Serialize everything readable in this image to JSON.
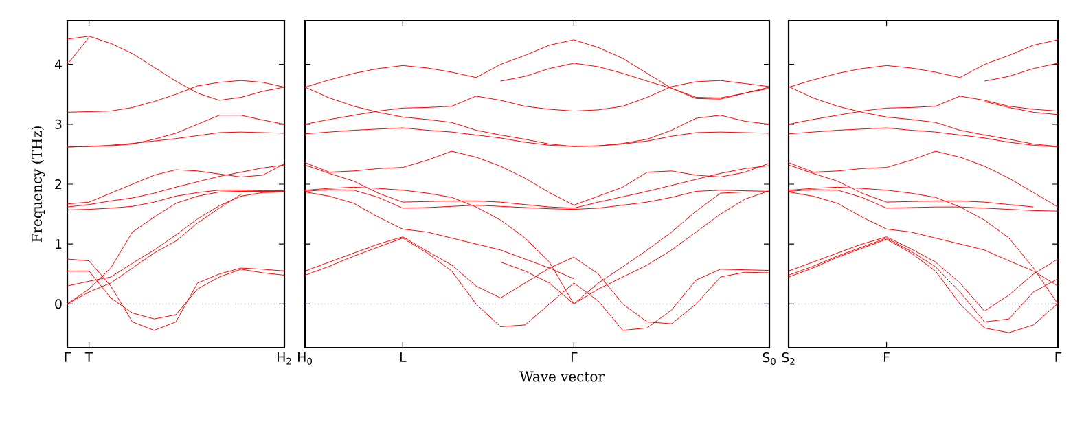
{
  "chart_data": [
    {
      "type": "line",
      "ylabel": "Frequency (THz)",
      "ylim": [
        -0.73,
        4.73
      ],
      "yticks": [
        0,
        1,
        2,
        3,
        4
      ],
      "categories": [
        "Γ",
        "T",
        null,
        null,
        null,
        null,
        null,
        null,
        null,
        null,
        "H$_{2}$"
      ],
      "ref_lines": [
        {
          "axis": "y",
          "value": 0,
          "color": "#6060ff",
          "line_style": "dotted"
        }
      ],
      "series": [
        {
          "color": "#ff0000",
          "values": [
            4.42,
            4.47,
            4.35,
            4.18,
            3.95,
            3.72,
            3.52,
            3.4,
            3.45,
            3.55,
            3.62
          ]
        },
        {
          "color": "#ff0000",
          "values": [
            3.2,
            3.21,
            3.22,
            3.28,
            3.38,
            3.5,
            3.64,
            3.7,
            3.73,
            3.7,
            3.62
          ]
        },
        {
          "color": "#ff0000",
          "values": [
            2.62,
            2.63,
            2.64,
            2.67,
            2.75,
            2.85,
            3.0,
            3.15,
            3.15,
            3.07,
            3.0
          ]
        },
        {
          "color": "#ff0000",
          "values": [
            2.62,
            2.63,
            2.65,
            2.68,
            2.72,
            2.76,
            2.81,
            2.86,
            2.87,
            2.86,
            2.85
          ]
        },
        {
          "color": "#ff0000",
          "values": [
            1.67,
            1.7,
            1.85,
            2.0,
            2.15,
            2.24,
            2.22,
            2.17,
            2.12,
            2.15,
            2.34
          ]
        },
        {
          "color": "#ff0000",
          "values": [
            1.62,
            1.66,
            1.72,
            1.77,
            1.85,
            1.95,
            2.04,
            2.13,
            2.2,
            2.27,
            2.32
          ]
        },
        {
          "color": "#ff0000",
          "values": [
            1.57,
            1.58,
            1.6,
            1.63,
            1.7,
            1.8,
            1.86,
            1.9,
            1.9,
            1.89,
            1.89
          ]
        },
        {
          "color": "#ff0000",
          "values": [
            0.0,
            0.25,
            0.6,
            1.2,
            1.45,
            1.68,
            1.8,
            1.87,
            1.88,
            1.88,
            1.88
          ]
        },
        {
          "color": "#ff0000",
          "values": [
            0.3,
            0.38,
            0.45,
            0.68,
            0.9,
            1.15,
            1.42,
            1.64,
            1.8,
            1.86,
            1.87
          ]
        },
        {
          "color": "#ff0000",
          "values": [
            0.75,
            0.72,
            0.3,
            -0.3,
            -0.44,
            -0.3,
            0.35,
            0.5,
            0.6,
            0.58,
            0.55
          ]
        },
        {
          "color": "#ff0000",
          "values": [
            0.55,
            0.55,
            0.1,
            -0.15,
            -0.25,
            -0.18,
            0.25,
            0.45,
            0.58,
            0.52,
            0.48
          ]
        },
        {
          "color": "#ff0000",
          "values": [
            4.0,
            4.45,
            null,
            null,
            null,
            null,
            null,
            null,
            null,
            null,
            null
          ]
        },
        {
          "color": "#ff0000",
          "values": [
            0.0,
            0.2,
            0.35,
            0.6,
            0.85,
            1.05,
            1.35,
            1.6,
            1.83,
            null,
            null
          ]
        }
      ]
    },
    {
      "type": "line",
      "xlabel": "Wave vector",
      "ylim": [
        -0.73,
        4.73
      ],
      "yticks": [
        0,
        1,
        2,
        3,
        4
      ],
      "tick_labels": "x",
      "categories": [
        "H$_{0}$",
        null,
        null,
        null,
        "L",
        null,
        null,
        null,
        null,
        null,
        null,
        "Γ",
        null,
        null,
        null,
        null,
        null,
        null,
        null,
        "S$_{0}$"
      ],
      "ref_lines": [
        {
          "axis": "y",
          "value": 0,
          "color": "#6060ff",
          "line_style": "dotted"
        }
      ],
      "series": [
        {
          "color": "#ff0000",
          "values": [
            3.62,
            3.74,
            3.85,
            3.93,
            3.98,
            3.94,
            3.87,
            3.78,
            4.0,
            4.15,
            4.32,
            4.41,
            4.28,
            4.1,
            3.85,
            3.6,
            3.43,
            3.42,
            3.52,
            3.62
          ]
        },
        {
          "color": "#ff0000",
          "values": [
            null,
            null,
            null,
            null,
            null,
            null,
            null,
            null,
            3.72,
            3.8,
            3.93,
            4.02,
            3.96,
            3.85,
            3.72,
            3.6,
            3.45,
            3.44,
            3.52,
            3.6
          ]
        },
        {
          "color": "#ff0000",
          "values": [
            3.0,
            3.08,
            3.15,
            3.22,
            3.27,
            3.28,
            3.3,
            3.47,
            3.4,
            3.3,
            3.25,
            3.22,
            3.24,
            3.3,
            3.45,
            3.63,
            3.71,
            3.73,
            3.68,
            3.63
          ]
        },
        {
          "color": "#ff0000",
          "values": [
            3.62,
            3.44,
            3.3,
            3.2,
            3.12,
            3.08,
            3.03,
            2.9,
            2.82,
            2.75,
            2.67,
            2.63,
            2.64,
            2.68,
            2.75,
            2.9,
            3.1,
            3.15,
            3.05,
            3.0
          ]
        },
        {
          "color": "#ff0000",
          "values": [
            2.84,
            2.87,
            2.9,
            2.92,
            2.94,
            2.9,
            2.87,
            2.82,
            2.77,
            2.7,
            2.65,
            2.63,
            2.64,
            2.67,
            2.72,
            2.8,
            2.86,
            2.87,
            2.86,
            2.85
          ]
        },
        {
          "color": "#ff0000",
          "values": [
            2.36,
            2.2,
            2.22,
            2.26,
            2.28,
            2.4,
            2.55,
            2.45,
            2.3,
            2.1,
            1.86,
            1.65,
            1.8,
            1.95,
            2.2,
            2.22,
            2.15,
            2.12,
            2.2,
            2.35
          ]
        },
        {
          "color": "#ff0000",
          "values": [
            2.32,
            2.18,
            2.05,
            1.85,
            1.7,
            1.71,
            1.72,
            1.72,
            1.7,
            1.66,
            1.62,
            1.6,
            1.7,
            1.79,
            1.88,
            1.98,
            2.08,
            2.18,
            2.26,
            2.31
          ]
        },
        {
          "color": "#ff0000",
          "values": [
            1.88,
            1.91,
            1.9,
            1.78,
            1.6,
            1.61,
            1.63,
            1.65,
            1.63,
            1.61,
            1.59,
            1.58,
            1.6,
            1.65,
            1.7,
            1.78,
            1.88,
            1.9,
            1.89,
            1.88
          ]
        },
        {
          "color": "#ff0000",
          "values": [
            1.87,
            1.8,
            1.68,
            1.45,
            1.25,
            1.2,
            1.1,
            1.0,
            0.9,
            0.75,
            0.6,
            0.42,
            null,
            null,
            null,
            null,
            null,
            null,
            null,
            null
          ]
        },
        {
          "color": "#ff0000",
          "values": [
            1.9,
            1.93,
            1.95,
            1.93,
            1.9,
            1.85,
            1.78,
            1.62,
            1.4,
            1.1,
            0.7,
            0.0,
            0.35,
            0.62,
            0.9,
            1.2,
            1.55,
            1.85,
            1.87,
            1.87
          ]
        },
        {
          "color": "#ff0000",
          "values": [
            null,
            null,
            null,
            null,
            null,
            null,
            null,
            null,
            0.7,
            0.55,
            0.35,
            0.0,
            0.25,
            0.45,
            0.65,
            0.9,
            1.2,
            1.5,
            1.75,
            1.89
          ]
        },
        {
          "color": "#ff0000",
          "values": [
            0.55,
            0.7,
            0.85,
            1.0,
            1.12,
            0.88,
            0.65,
            0.3,
            0.1,
            0.35,
            0.6,
            0.78,
            0.5,
            0.0,
            -0.3,
            -0.33,
            0.0,
            0.45,
            0.53,
            0.52
          ]
        },
        {
          "color": "#ff0000",
          "values": [
            0.48,
            0.63,
            0.8,
            0.95,
            1.1,
            0.85,
            0.55,
            0.0,
            -0.38,
            -0.35,
            0.0,
            0.35,
            0.05,
            -0.44,
            -0.4,
            -0.1,
            0.4,
            0.58,
            0.57,
            0.56
          ]
        }
      ]
    },
    {
      "type": "line",
      "ylim": [
        -0.73,
        4.73
      ],
      "yticks": [
        0,
        1,
        2,
        3,
        4
      ],
      "tick_labels": "x",
      "categories": [
        "S$_{2}$",
        null,
        null,
        null,
        "F",
        null,
        null,
        null,
        null,
        null,
        null,
        "Γ"
      ],
      "ref_lines": [
        {
          "axis": "y",
          "value": 0,
          "color": "#6060ff",
          "line_style": "dotted"
        }
      ],
      "series": [
        {
          "color": "#ff0000",
          "values": [
            3.62,
            3.74,
            3.85,
            3.93,
            3.98,
            3.94,
            3.87,
            3.78,
            4.0,
            4.15,
            4.32,
            4.41
          ]
        },
        {
          "color": "#ff0000",
          "values": [
            null,
            null,
            null,
            null,
            null,
            null,
            null,
            null,
            3.72,
            3.8,
            3.93,
            4.02
          ]
        },
        {
          "color": "#ff0000",
          "values": [
            3.0,
            3.08,
            3.15,
            3.22,
            3.27,
            3.28,
            3.3,
            3.47,
            3.4,
            3.3,
            3.25,
            3.22
          ]
        },
        {
          "color": "#ff0000",
          "values": [
            null,
            null,
            null,
            null,
            null,
            null,
            null,
            null,
            3.38,
            3.28,
            3.2,
            3.16
          ]
        },
        {
          "color": "#ff0000",
          "values": [
            3.63,
            3.44,
            3.3,
            3.2,
            3.12,
            3.08,
            3.03,
            2.9,
            2.82,
            2.75,
            2.67,
            2.63
          ]
        },
        {
          "color": "#ff0000",
          "values": [
            2.84,
            2.87,
            2.9,
            2.92,
            2.94,
            2.9,
            2.87,
            2.82,
            2.77,
            2.7,
            2.65,
            2.62
          ]
        },
        {
          "color": "#ff0000",
          "values": [
            2.36,
            2.2,
            2.22,
            2.26,
            2.28,
            2.4,
            2.55,
            2.45,
            2.3,
            2.1,
            1.86,
            1.62
          ]
        },
        {
          "color": "#ff0000",
          "values": [
            2.32,
            2.18,
            2.05,
            1.85,
            1.7,
            1.71,
            1.72,
            1.72,
            1.7,
            1.66,
            1.62,
            null
          ]
        },
        {
          "color": "#ff0000",
          "values": [
            1.88,
            1.91,
            1.9,
            1.78,
            1.6,
            1.61,
            1.62,
            1.62,
            1.6,
            1.58,
            1.56,
            1.55
          ]
        },
        {
          "color": "#ff0000",
          "values": [
            1.87,
            1.8,
            1.68,
            1.45,
            1.25,
            1.2,
            1.1,
            1.0,
            0.9,
            0.72,
            0.55,
            0.3
          ]
        },
        {
          "color": "#ff0000",
          "values": [
            1.9,
            1.93,
            1.95,
            1.93,
            1.9,
            1.85,
            1.78,
            1.62,
            1.4,
            1.1,
            0.6,
            0.0
          ]
        },
        {
          "color": "#ff0000",
          "values": [
            0.55,
            0.7,
            0.85,
            1.0,
            1.12,
            0.92,
            0.7,
            0.35,
            -0.12,
            0.15,
            0.5,
            0.75
          ]
        },
        {
          "color": "#ff0000",
          "values": [
            0.48,
            0.63,
            0.8,
            0.95,
            1.1,
            0.88,
            0.62,
            0.2,
            -0.3,
            -0.25,
            0.2,
            0.42
          ]
        },
        {
          "color": "#ff0000",
          "values": [
            0.45,
            0.6,
            0.78,
            0.93,
            1.08,
            0.85,
            0.55,
            0.0,
            -0.4,
            -0.48,
            -0.35,
            0.01
          ]
        }
      ]
    }
  ]
}
